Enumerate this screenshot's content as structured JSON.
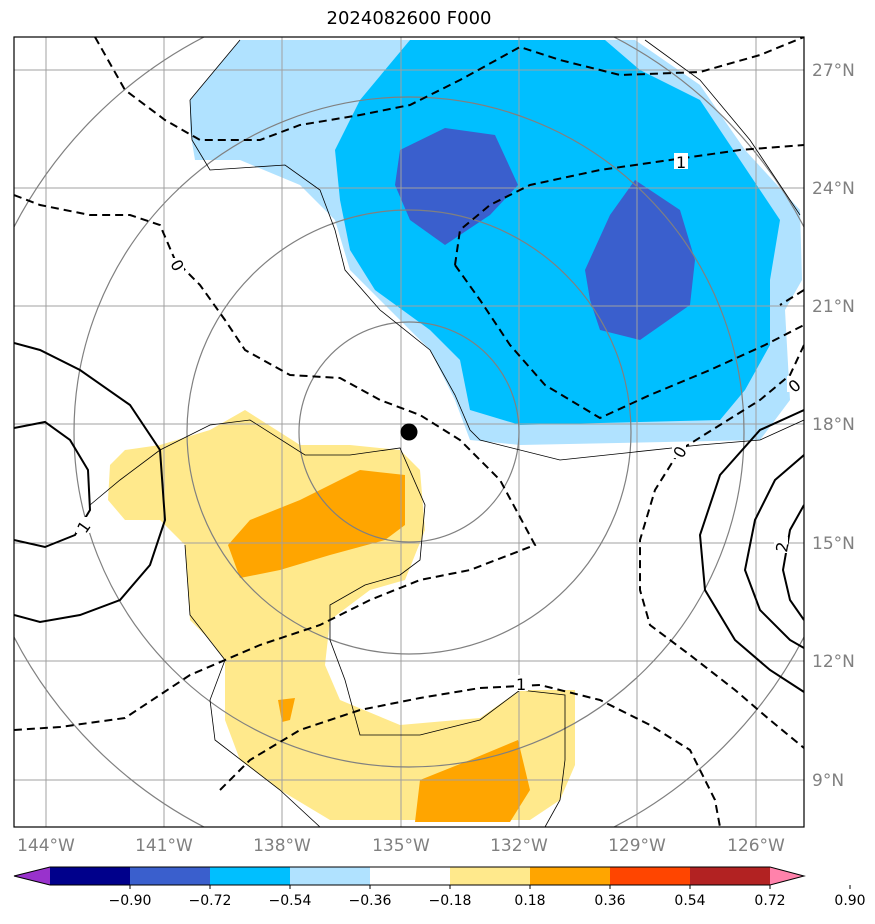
{
  "title": "2024082600 F000",
  "lat_labels": [
    "27°N",
    "24°N",
    "21°N",
    "18°N",
    "15°N",
    "12°N",
    "9°N"
  ],
  "lon_labels": [
    "144°W",
    "141°W",
    "138°W",
    "135°W",
    "132°W",
    "129°W",
    "126°W"
  ],
  "contour_labels": [
    "0",
    "1",
    "0",
    "0",
    "1",
    "2",
    "1"
  ],
  "colorbar": {
    "ticks": [
      "−0.90",
      "−0.72",
      "−0.54",
      "−0.36",
      "−0.18",
      "0.18",
      "0.36",
      "0.54",
      "0.72",
      "0.90"
    ],
    "colors": [
      "#9932cc",
      "#00008b",
      "#3a5fcd",
      "#00bfff",
      "#b0e2ff",
      "#ffffff",
      "#ffe98c",
      "#ffa500",
      "#ff4500",
      "#b22222",
      "#ff82ab"
    ]
  },
  "colors": {
    "negative_light": "#b0e2ff",
    "negative_mid": "#00bfff",
    "negative_strong": "#3a5fcd",
    "positive_light": "#ffe98c",
    "positive_mid": "#ffa500",
    "grid": "#999999"
  },
  "storm_marker": "filled black circle"
}
